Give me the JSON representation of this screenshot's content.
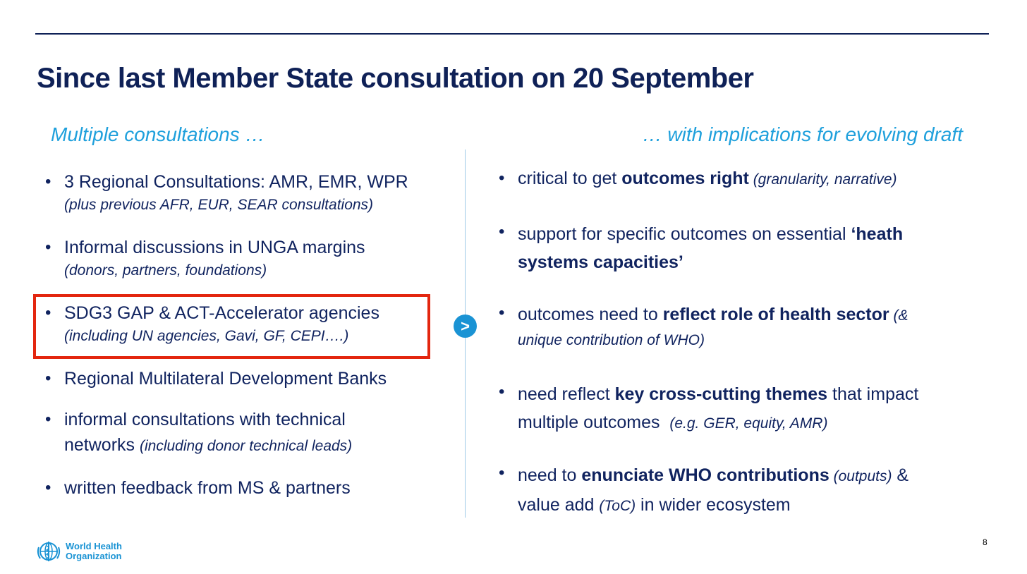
{
  "slide": {
    "title": "Since last Member State consultation on 20 September",
    "left_heading": "Multiple consultations …",
    "right_heading": "… with implications for evolving draft",
    "arrow_symbol": ">",
    "page_number": "8"
  },
  "left_items": [
    {
      "main": "3 Regional Consultations: AMR, EMR, WPR",
      "sub": "(plus previous AFR, EUR, SEAR consultations)"
    },
    {
      "main": "Informal discussions in UNGA margins",
      "sub": "(donors, partners, foundations)"
    },
    {
      "main": "SDG3 GAP & ACT-Accelerator agencies",
      "sub": "(including UN agencies, Gavi, GF, CEPI….)"
    },
    {
      "main": "Regional Multilateral Development Banks"
    },
    {
      "main": "informal consultations with technical",
      "sub_main": "networks",
      "sub": "(including donor technical leads)"
    },
    {
      "main": "written feedback from MS & partners"
    }
  ],
  "right_items": [
    {
      "pre": "critical to get ",
      "bold": "outcomes right",
      "italic": " (granularity, narrative)"
    },
    {
      "pre": "support for specific outcomes on essential ",
      "bold": "‘heath",
      "line2_bold": "systems capacities’"
    },
    {
      "pre": "outcomes need to ",
      "bold": "reflect role of health sector",
      "italic": " (&",
      "line2_italic": "unique contribution of WHO)"
    },
    {
      "pre": "need reflect ",
      "bold": "key cross-cutting themes",
      "post": " that impact",
      "line2": "multiple outcomes  ",
      "line2_italic": "(e.g. GER, equity, AMR)"
    },
    {
      "pre": "need to ",
      "bold": "enunciate WHO contributions",
      "italic": " (outputs)",
      "post": " &",
      "line2": "value add ",
      "line2_italic": "(ToC)",
      "line2_post": " in wider ecosystem"
    }
  ],
  "logo": {
    "line1": "World Health",
    "line2": "Organization"
  },
  "colors": {
    "navy": "#0f2157",
    "accent_blue": "#1fa0dc",
    "highlight_red": "#e3260f"
  }
}
